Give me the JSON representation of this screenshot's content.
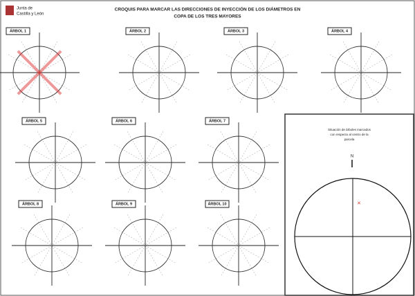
{
  "header": {
    "logo_text": [
      "Junta de",
      "Castilla y León"
    ],
    "title": [
      "CROQUIS PARA MARCAR LAS DIRECCIONES DE INYECCIÓN DE LOS DIÁMETROS EN",
      "COPA DE LOS TRES MAYORES"
    ]
  },
  "diagrams": [
    {
      "label": "ÁRBOL 1"
    },
    {
      "label": "ÁRBOL 2"
    },
    {
      "label": "ÁRBOL 3"
    },
    {
      "label": "ÁRBOL 4"
    },
    {
      "label": "ÁRBOL 5"
    },
    {
      "label": "ÁRBOL 6"
    },
    {
      "label": "ÁRBOL 7"
    },
    {
      "label": "ÁRBOL 8"
    },
    {
      "label": "ÁRBOL 9"
    },
    {
      "label": "ÁRBOL 10"
    }
  ],
  "panel": {
    "title": [
      "Situación de árboles marcados",
      "con respecto al centro de la",
      "parcela"
    ],
    "north": "N"
  }
}
